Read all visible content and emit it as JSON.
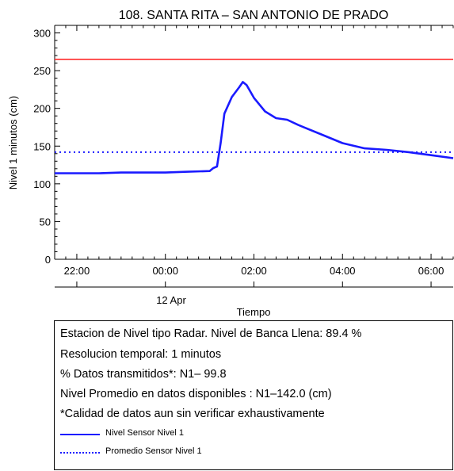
{
  "chart_data": {
    "type": "line",
    "title": "108. SANTA RITA – SAN ANTONIO DE PRADO",
    "xlabel": "Tiempo",
    "ylabel": "Nivel 1 minutos (cm)",
    "date_label": "12 Apr",
    "xlim": [
      "2025-04-11T21:30",
      "2025-04-12T06:30"
    ],
    "ylim": [
      0,
      310
    ],
    "x_ticks": [
      {
        "t": "2025-04-11T22:00",
        "label": "22:00"
      },
      {
        "t": "2025-04-12T00:00",
        "label": "00:00"
      },
      {
        "t": "2025-04-12T02:00",
        "label": "02:00"
      },
      {
        "t": "2025-04-12T04:00",
        "label": "04:00"
      },
      {
        "t": "2025-04-12T06:00",
        "label": "06:00"
      }
    ],
    "y_ticks": [
      0,
      50,
      100,
      150,
      200,
      250,
      300
    ],
    "grid": false,
    "threshold_line": {
      "value": 265,
      "color": "#ff2a2a"
    },
    "series": [
      {
        "name": "Nivel Sensor Nivel 1",
        "color": "#1a1aff",
        "style": "solid",
        "points": [
          [
            "2025-04-11T21:30",
            114
          ],
          [
            "2025-04-11T22:00",
            114
          ],
          [
            "2025-04-11T22:30",
            114
          ],
          [
            "2025-04-11T23:00",
            115
          ],
          [
            "2025-04-11T23:30",
            115
          ],
          [
            "2025-04-12T00:00",
            115
          ],
          [
            "2025-04-12T00:30",
            116
          ],
          [
            "2025-04-12T01:00",
            117
          ],
          [
            "2025-04-12T01:05",
            121
          ],
          [
            "2025-04-12T01:10",
            123
          ],
          [
            "2025-04-12T01:15",
            155
          ],
          [
            "2025-04-12T01:20",
            193
          ],
          [
            "2025-04-12T01:30",
            215
          ],
          [
            "2025-04-12T01:40",
            228
          ],
          [
            "2025-04-12T01:45",
            235
          ],
          [
            "2025-04-12T01:50",
            231
          ],
          [
            "2025-04-12T02:00",
            214
          ],
          [
            "2025-04-12T02:15",
            196
          ],
          [
            "2025-04-12T02:30",
            187
          ],
          [
            "2025-04-12T02:45",
            185
          ],
          [
            "2025-04-12T03:00",
            178
          ],
          [
            "2025-04-12T03:30",
            166
          ],
          [
            "2025-04-12T04:00",
            154
          ],
          [
            "2025-04-12T04:30",
            147
          ],
          [
            "2025-04-12T05:00",
            145
          ],
          [
            "2025-04-12T05:30",
            142
          ],
          [
            "2025-04-12T06:00",
            138
          ],
          [
            "2025-04-12T06:30",
            134
          ]
        ]
      },
      {
        "name": "Promedio Sensor Nivel 1",
        "color": "#1a1aff",
        "style": "dotted",
        "points": [
          [
            "2025-04-11T21:30",
            142
          ],
          [
            "2025-04-12T06:30",
            142
          ]
        ]
      }
    ]
  },
  "info": {
    "lines": [
      "Estacion de Nivel tipo Radar. Nivel de Banca Llena: 89.4 %",
      "Resolucion temporal: 1 minutos",
      "% Datos transmitidos*: N1– 99.8",
      "Nivel Promedio en datos disponibles : N1–142.0 (cm)",
      "*Calidad de datos aun sin verificar exhaustivamente"
    ],
    "legend": [
      "Nivel Sensor Nivel 1",
      "Promedio Sensor Nivel 1"
    ]
  }
}
